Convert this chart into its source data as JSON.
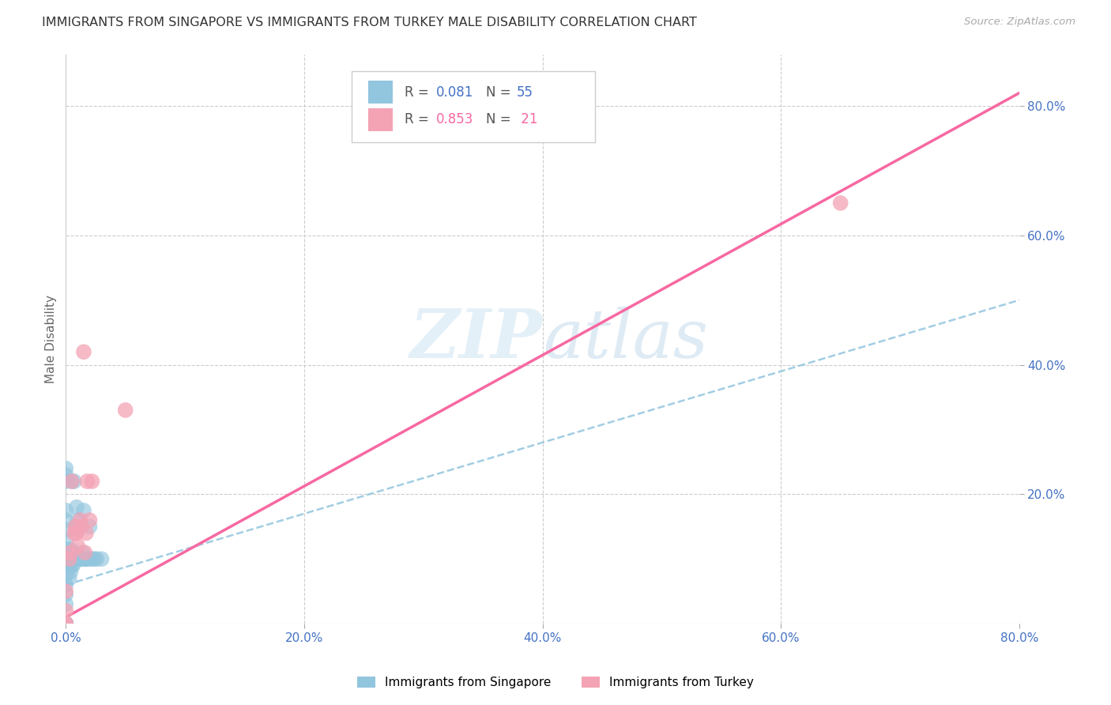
{
  "title": "IMMIGRANTS FROM SINGAPORE VS IMMIGRANTS FROM TURKEY MALE DISABILITY CORRELATION CHART",
  "source": "Source: ZipAtlas.com",
  "ylabel": "Male Disability",
  "xlim": [
    0.0,
    0.8
  ],
  "ylim": [
    0.0,
    0.88
  ],
  "xtick_labels": [
    "0.0%",
    "20.0%",
    "40.0%",
    "60.0%",
    "80.0%"
  ],
  "xtick_vals": [
    0.0,
    0.2,
    0.4,
    0.6,
    0.8
  ],
  "ytick_labels": [
    "20.0%",
    "40.0%",
    "60.0%",
    "80.0%"
  ],
  "ytick_vals": [
    0.2,
    0.4,
    0.6,
    0.8
  ],
  "singapore_color": "#92c5de",
  "turkey_color": "#f4a3b5",
  "singapore_line_color": "#92c5de",
  "turkey_line_color": "#f768a1",
  "singapore_R": 0.081,
  "turkey_R": 0.853,
  "singapore_N": 55,
  "turkey_N": 21,
  "sg_x": [
    0.0,
    0.0,
    0.0,
    0.0,
    0.0,
    0.0,
    0.0,
    0.0,
    0.0,
    0.0,
    0.0,
    0.0,
    0.0,
    0.0,
    0.0,
    0.0,
    0.0,
    0.0,
    0.0,
    0.0,
    0.002,
    0.003,
    0.003,
    0.003,
    0.004,
    0.004,
    0.004,
    0.005,
    0.005,
    0.005,
    0.006,
    0.006,
    0.007,
    0.007,
    0.008,
    0.008,
    0.009,
    0.009,
    0.01,
    0.01,
    0.01,
    0.011,
    0.012,
    0.013,
    0.014,
    0.015,
    0.015,
    0.016,
    0.018,
    0.019,
    0.02,
    0.022,
    0.024,
    0.026,
    0.03
  ],
  "sg_y": [
    0.0,
    0.0,
    0.0,
    0.0,
    0.0,
    0.0,
    0.03,
    0.045,
    0.06,
    0.075,
    0.09,
    0.1,
    0.115,
    0.13,
    0.145,
    0.16,
    0.175,
    0.22,
    0.23,
    0.24,
    0.1,
    0.07,
    0.09,
    0.1,
    0.08,
    0.1,
    0.115,
    0.09,
    0.105,
    0.22,
    0.09,
    0.11,
    0.1,
    0.22,
    0.1,
    0.15,
    0.1,
    0.18,
    0.1,
    0.145,
    0.16,
    0.1,
    0.1,
    0.1,
    0.11,
    0.1,
    0.175,
    0.1,
    0.1,
    0.1,
    0.15,
    0.1,
    0.1,
    0.1,
    0.1
  ],
  "tr_x": [
    0.0,
    0.0,
    0.0,
    0.0,
    0.003,
    0.004,
    0.005,
    0.007,
    0.008,
    0.009,
    0.01,
    0.012,
    0.013,
    0.015,
    0.016,
    0.017,
    0.018,
    0.02,
    0.022,
    0.05,
    0.65
  ],
  "tr_y": [
    0.0,
    0.0,
    0.02,
    0.05,
    0.1,
    0.11,
    0.22,
    0.14,
    0.15,
    0.14,
    0.12,
    0.16,
    0.15,
    0.42,
    0.11,
    0.14,
    0.22,
    0.16,
    0.22,
    0.33,
    0.65
  ],
  "sg_line": [
    0.0,
    0.8,
    0.06,
    0.5
  ],
  "tr_line": [
    0.0,
    0.8,
    0.01,
    0.82
  ]
}
